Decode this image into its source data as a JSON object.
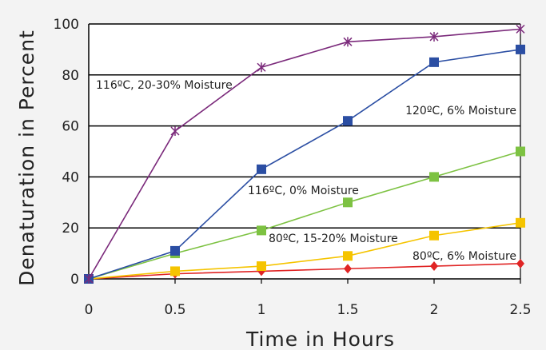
{
  "chart_data": {
    "type": "line",
    "xlabel": "Time in Hours",
    "ylabel": "Denaturation in Percent",
    "xlim": [
      0,
      2.5
    ],
    "ylim": [
      0,
      100
    ],
    "x_ticks": [
      "0",
      "0.5",
      "1",
      "1.5",
      "2",
      "2.5"
    ],
    "y_ticks": [
      "0",
      "20",
      "40",
      "60",
      "80",
      "100"
    ],
    "grid": "horizontal",
    "x": [
      0,
      0.5,
      1,
      1.5,
      2,
      2.5
    ],
    "series": [
      {
        "name": "116ºC, 20-30% Moisture",
        "color": "#7b2a7b",
        "marker": "asterisk",
        "values": [
          0,
          58,
          83,
          93,
          95,
          98
        ]
      },
      {
        "name": "120ºC, 6% Moisture",
        "color": "#2b4ea3",
        "marker": "square",
        "values": [
          0,
          11,
          43,
          62,
          85,
          90
        ]
      },
      {
        "name": "116ºC, 0% Moisture",
        "color": "#7dc242",
        "marker": "square",
        "values": [
          0,
          10,
          19,
          30,
          40,
          50
        ]
      },
      {
        "name": "80ºC, 15-20% Moisture",
        "color": "#f5c400",
        "marker": "square",
        "values": [
          0,
          3,
          5,
          9,
          17,
          22
        ]
      },
      {
        "name": "80ºC, 6% Moisture",
        "color": "#e02424",
        "marker": "diamond",
        "values": [
          0,
          2,
          3,
          4,
          5,
          6
        ]
      }
    ]
  }
}
